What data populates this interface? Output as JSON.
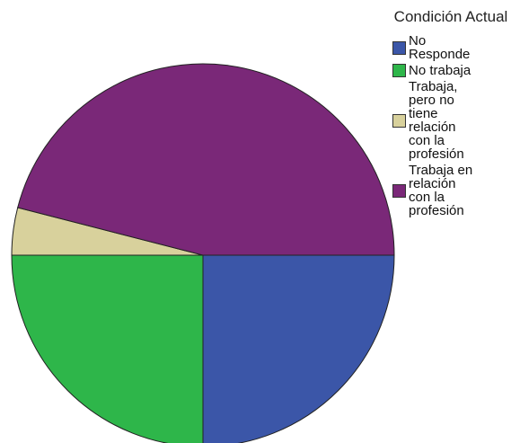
{
  "chart_data": {
    "type": "pie",
    "legend_title": "Condición Actual",
    "categories": [
      "No Responde",
      "No trabaja",
      "Trabaja, pero no tiene relación con la profesión",
      "Trabaja en relación con la profesión"
    ],
    "values": [
      25,
      25,
      4,
      46
    ],
    "colors": [
      "#3b56a8",
      "#2eb64a",
      "#d8d19c",
      "#7a2878"
    ],
    "legend": "right"
  }
}
